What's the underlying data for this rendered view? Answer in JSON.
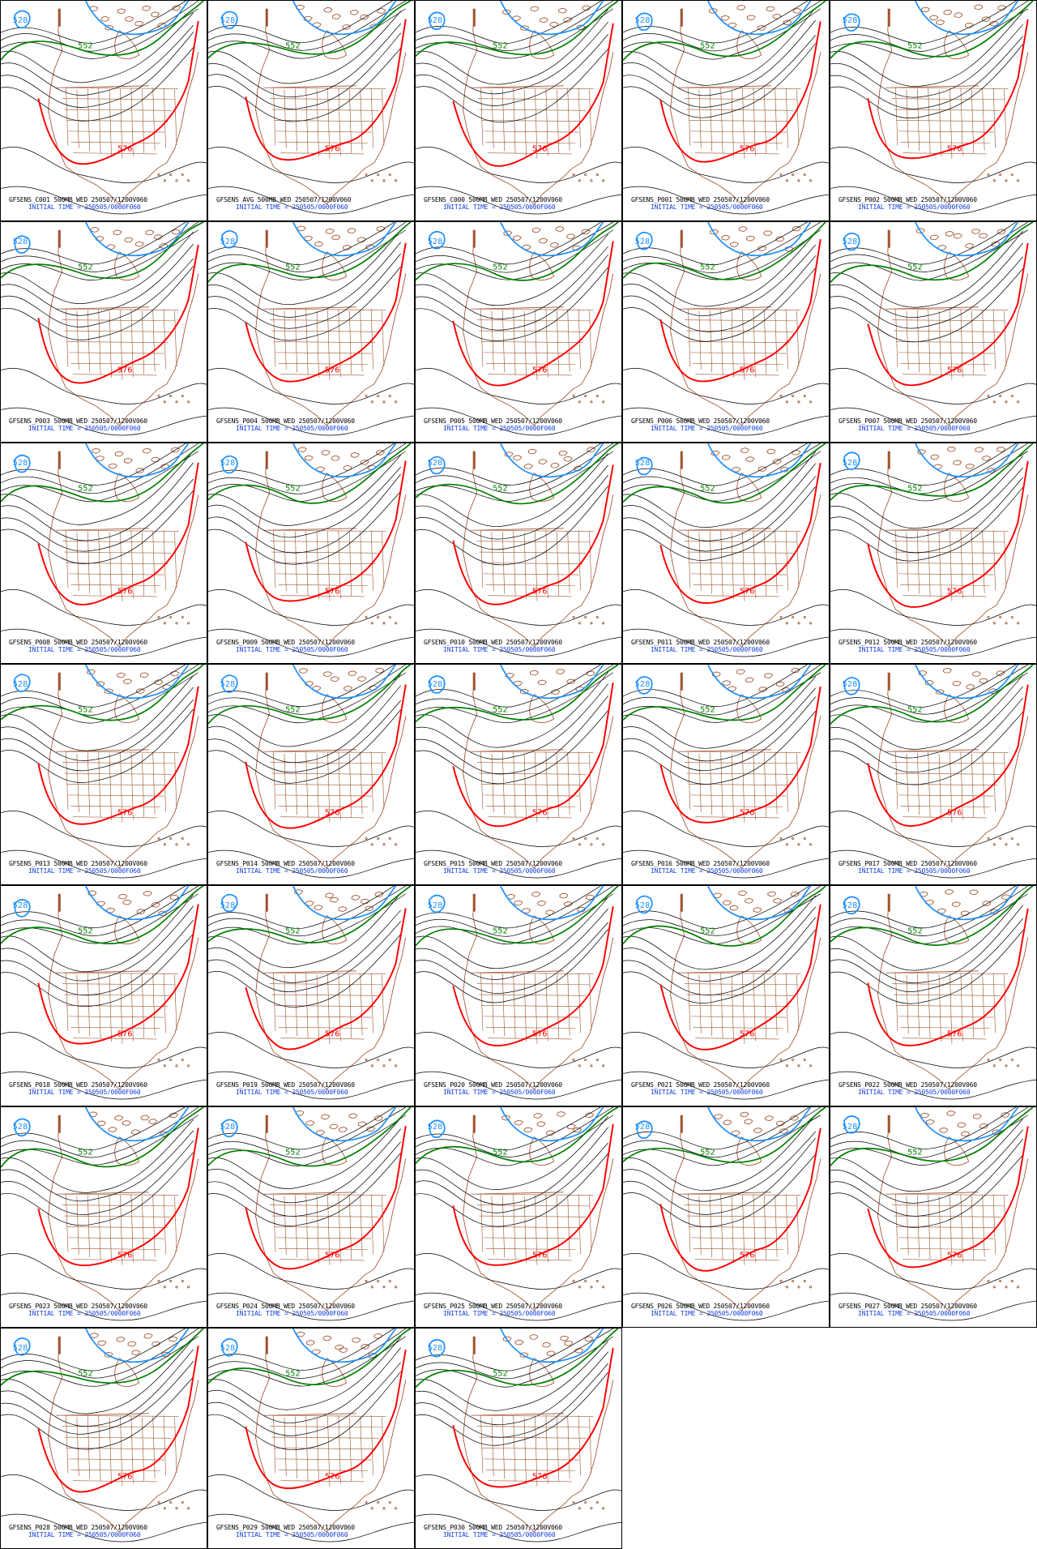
{
  "panels": [
    {
      "id": "GFSENS_C001",
      "title": "GFSENS_C001 500MB WED 250507/1200V060",
      "init": "INITIAL TIME = 250505/0000F060"
    },
    {
      "id": "GFSENS_AVG",
      "title": "GFSENS AVG 500MB WED 250507/1200V060",
      "init": "INITIAL TIME = 250505/0000F060"
    },
    {
      "id": "GFSENS_C000",
      "title": "GFSENS_C000 500MB WED 250507/1200V060",
      "init": "INITIAL TIME = 250505/0000F060"
    },
    {
      "id": "GFSENS_P001",
      "title": "GFSENS_P001 500MB WED 250507/1200V060",
      "init": "INITIAL TIME = 250505/0000F060"
    },
    {
      "id": "GFSENS_P002",
      "title": "GFSENS_P002 500MB WED 250507/1200V060",
      "init": "INITIAL TIME = 250505/0000F060"
    },
    {
      "id": "GFSENS_P003",
      "title": "GFSENS_P003 500MB WED 250507/1200V060",
      "init": "INITIAL TIME = 250505/0000F060"
    },
    {
      "id": "GFSENS_P004",
      "title": "GFSENS_P004 500MB WED 250507/1200V060",
      "init": "INITIAL TIME = 250505/0000F060"
    },
    {
      "id": "GFSENS_P005",
      "title": "GFSENS_P005 500MB WED 250507/1200V060",
      "init": "INITIAL TIME = 250505/0000F060"
    },
    {
      "id": "GFSENS_P006",
      "title": "GFSENS_P006 500MB WED 250507/1200V060",
      "init": "INITIAL TIME = 250505/0000F060"
    },
    {
      "id": "GFSENS_P007",
      "title": "GFSENS_P007 500MB WED 250507/1200V060",
      "init": "INITIAL TIME = 250505/0000F060"
    },
    {
      "id": "GFSENS_P008",
      "title": "GFSENS_P008 500MB WED 250507/1200V060",
      "init": "INITIAL TIME = 250505/0000F060"
    },
    {
      "id": "GFSENS_P009",
      "title": "GFSENS_P009 500MB WED 250507/1200V060",
      "init": "INITIAL TIME = 250505/0000F060"
    },
    {
      "id": "GFSENS_P010",
      "title": "GFSENS_P010 500MB WED 250507/1200V060",
      "init": "INITIAL TIME = 250505/0000F060"
    },
    {
      "id": "GFSENS_P011",
      "title": "GFSENS_P011 500MB WED 250507/1200V060",
      "init": "INITIAL TIME = 250505/0000F060"
    },
    {
      "id": "GFSENS_P012",
      "title": "GFSENS_P012 500MB WED 250507/1200V060",
      "init": "INITIAL TIME = 250505/0000F060"
    },
    {
      "id": "GFSENS_P013",
      "title": "GFSENS_P013 500MB WED 250507/1200V060",
      "init": "INITIAL TIME = 250505/0000F060"
    },
    {
      "id": "GFSENS_P014",
      "title": "GFSENS_P014 500MB WED 250507/1200V060",
      "init": "INITIAL TIME = 250505/0000F060"
    },
    {
      "id": "GFSENS_P015",
      "title": "GFSENS_P015 500MB WED 250507/1200V060",
      "init": "INITIAL TIME = 250505/0000F060"
    },
    {
      "id": "GFSENS_P016",
      "title": "GFSENS_P016 500MB WED 250507/1200V060",
      "init": "INITIAL TIME = 250505/0000F060"
    },
    {
      "id": "GFSENS_P017",
      "title": "GFSENS_P017 500MB WED 250507/1200V060",
      "init": "INITIAL TIME = 250505/0000F060"
    },
    {
      "id": "GFSENS_P018",
      "title": "GFSENS_P018 500MB WED 250507/1200V060",
      "init": "INITIAL TIME = 250505/0000F060"
    },
    {
      "id": "GFSENS_P019",
      "title": "GFSENS_P019 500MB WED 250507/1200V060",
      "init": "INITIAL TIME = 250505/0000F060"
    },
    {
      "id": "GFSENS_P020",
      "title": "GFSENS_P020 500MB WED 250507/1200V060",
      "init": "INITIAL TIME = 250505/0000F060"
    },
    {
      "id": "GFSENS_P021",
      "title": "GFSENS_P021 500MB WED 250507/1200V060",
      "init": "INITIAL TIME = 250505/0000F060"
    },
    {
      "id": "GFSENS_P022",
      "title": "GFSENS_P022 500MB WED 250507/1200V060",
      "init": "INITIAL TIME = 250505/0000F060"
    },
    {
      "id": "GFSENS_P023",
      "title": "GFSENS_P023 500MB WED 250507/1200V060",
      "init": "INITIAL TIME = 250505/0000F060"
    },
    {
      "id": "GFSENS_P024",
      "title": "GFSENS_P024 500MB WED 250507/1200V060",
      "init": "INITIAL TIME = 250505/0000F060"
    },
    {
      "id": "GFSENS_P025",
      "title": "GFSENS_P025 500MB WED 250507/1200V060",
      "init": "INITIAL TIME = 250505/0000F060"
    },
    {
      "id": "GFSENS_P026",
      "title": "GFSENS_P026 500MB WED 250507/1200V060",
      "init": "INITIAL TIME = 250505/0000F060"
    },
    {
      "id": "GFSENS_P027",
      "title": "GFSENS_P027 500MB WED 250507/1200V060",
      "init": "INITIAL TIME = 250505/0000F060"
    },
    {
      "id": "GFSENS_P028",
      "title": "GFSENS_P028 500MB WED 250507/1200V060",
      "init": "INITIAL TIME = 250505/0000F060"
    },
    {
      "id": "GFSENS_P029",
      "title": "GFSENS_P029 500MB WED 250507/1200V060",
      "init": "INITIAL TIME = 250505/0000F060"
    },
    {
      "id": "GFSENS_P030",
      "title": "GFSENS_P030 500MB WED 250507/1200V060",
      "init": "INITIAL TIME = 250505/0000F060"
    }
  ],
  "contour_labels": {
    "blue": "528",
    "green": "552",
    "red": "576"
  },
  "colors": {
    "contour_black": "#000000",
    "contour_blue_528": "#1e90ff",
    "contour_green_552": "#008000",
    "contour_red_576": "#ff0000",
    "geography": "#a0522d",
    "caption_title": "#000000",
    "caption_init": "#1540e0"
  }
}
